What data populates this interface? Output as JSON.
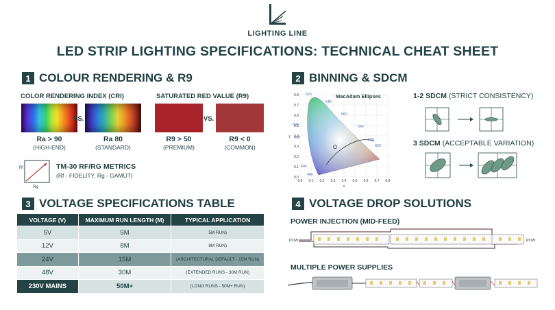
{
  "brand": {
    "name": "LIGHTING LINE"
  },
  "title": "LED STRIP LIGHTING SPECIFICATIONS: TECHNICAL CHEAT SHEET",
  "sections": {
    "s1": {
      "num": "1",
      "title": "COLOUR RENDERING & R9"
    },
    "s2": {
      "num": "2",
      "title": "BINNING & SDCM"
    },
    "s3": {
      "num": "3",
      "title": "VOLTAGE SPECIFICATIONS TABLE"
    },
    "s4": {
      "num": "4",
      "title": "VOLTAGE DROP SOLUTIONS"
    }
  },
  "cri": {
    "heading": "COLOR RENDERING INDEX (CRI)",
    "vs": "VS.",
    "high": {
      "value": "Ra > 90",
      "label": "(HIGH-END)"
    },
    "std": {
      "value": "Ra 80",
      "label": "(STANDARD)"
    }
  },
  "r9": {
    "heading": "SATURATED RED VALUE (R9)",
    "vs": "VS.",
    "premium": {
      "value": "R9 > 50",
      "label": "(PREMIUM)",
      "color": "#a8232a"
    },
    "common": {
      "value": "R9 < 0",
      "label": "(COMMON)",
      "color": "#a3383b"
    }
  },
  "tm30": {
    "title": "TM-30 RF/RG METRICS",
    "subtitle": "(Rf - FIDELITY, Rg - GAMUT)",
    "axis_y": "Rf",
    "axis_x": "Rg"
  },
  "binning": {
    "chart_title": "MacAdam Ellipses",
    "x_axis_label": "x",
    "y_axis_label": "y",
    "x_ticks": [
      "0.0",
      "0.1",
      "0.2",
      "0.3",
      "0.4",
      "0.5",
      "0.6",
      "0.7",
      "0.8"
    ],
    "y_ticks": [
      "0.0",
      "0.1",
      "0.2",
      "0.3",
      "0.4",
      "0.5",
      "0.6",
      "0.7",
      "0.8"
    ],
    "wavelengths": [
      "520",
      "540",
      "560",
      "580",
      "600",
      "620",
      "500",
      "490",
      "400",
      "480"
    ],
    "strict": {
      "label": "1-2 SDCM",
      "desc": "(STRICT CONSISTENCY)"
    },
    "acceptable": {
      "label": "3 SDCM",
      "desc": "(ACCEPTABLE VARIATION)"
    }
  },
  "table": {
    "headers": [
      "VOLTAGE (V)",
      "MAXIMUM RUN LENGTH (M)",
      "TYPICAL APPLICATION"
    ],
    "rows": [
      {
        "voltage": "5V",
        "run": "5M",
        "app": "5M RUN)"
      },
      {
        "voltage": "12V",
        "run": "8M",
        "app": "8M RUN)"
      },
      {
        "voltage": "24V",
        "run": "15M",
        "app": "(ARCHITECTURAL DEFAULT - 15M RUN)"
      },
      {
        "voltage": "48V",
        "run": "30M",
        "app": "(EXTENDED RUNS - 30M RUN)"
      },
      {
        "voltage": "230V MAINS",
        "run": "50M+",
        "app": "(LONG RUNS - 50M+ RUN)"
      }
    ]
  },
  "drop": {
    "injection": "POWER INJECTION (MID-FEED)",
    "pow_left": "POW",
    "pow_right": "POW",
    "multiple": "MULTIPLE POWER SUPPLIES"
  },
  "colors": {
    "primary": "#234345",
    "red": "#a8232a",
    "row_light": "#edf2f2",
    "row_mid": "#d6e1e2",
    "row_highlight": "#7f9a9c"
  }
}
